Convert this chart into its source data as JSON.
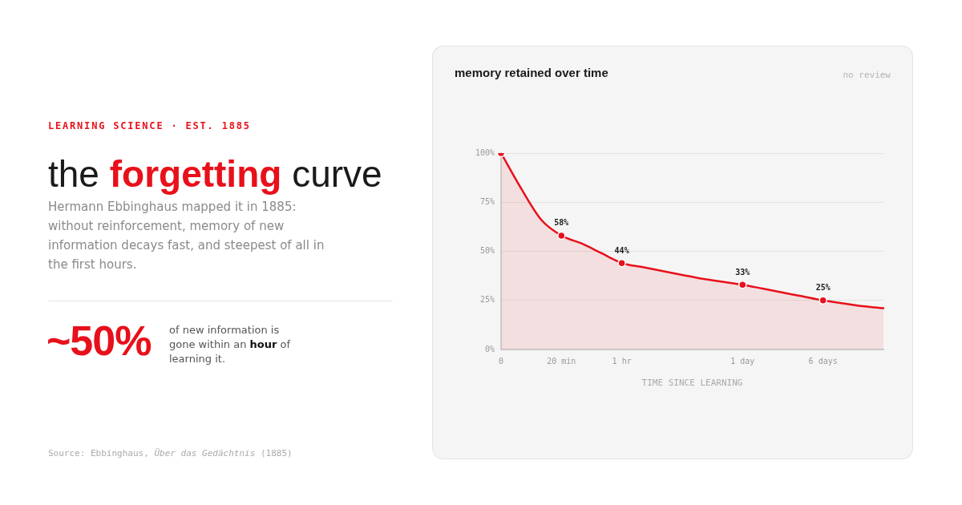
{
  "chart_data": {
    "type": "area",
    "title": "memory retained over time",
    "subtitle": "no review",
    "xlabel": "TIME SINCE LEARNING",
    "categories": [
      "0",
      null,
      null,
      "20 min",
      null,
      null,
      "1 hr",
      null,
      null,
      null,
      null,
      null,
      "1 day",
      null,
      null,
      null,
      "6 days",
      null,
      null,
      null
    ],
    "ylim": [
      0,
      100
    ],
    "yticks": [
      {
        "value": 0,
        "label": "0%"
      },
      {
        "value": 25,
        "label": "25%"
      },
      {
        "value": 50,
        "label": "50%"
      },
      {
        "value": 75,
        "label": "75%"
      },
      {
        "value": 100,
        "label": "100%"
      }
    ],
    "grid": "y",
    "series": [
      {
        "color": "#e8101a",
        "marker": "none",
        "values": [
          100,
          82,
          66,
          58,
          54,
          49,
          44,
          42,
          40,
          38,
          36,
          34.5,
          33,
          31,
          29,
          27,
          25,
          23.5,
          22,
          21
        ]
      },
      {
        "type": "scatter",
        "color": "#e8101a",
        "marker": "circle",
        "values": [
          100,
          null,
          null,
          58,
          null,
          null,
          44,
          null,
          null,
          null,
          null,
          null,
          33,
          null,
          null,
          null,
          25,
          null,
          null,
          null
        ],
        "value_labels": [
          null,
          null,
          null,
          "58%",
          null,
          null,
          "44%",
          null,
          null,
          null,
          null,
          null,
          "33%",
          null,
          null,
          null,
          "25%",
          null,
          null,
          null
        ]
      }
    ],
    "annotations": [
      "LEARNING SCIENCE · EST. 1885",
      "the forgetting curve",
      "Hermann Ebbinghaus mapped it in 1885: without reinforcement, memory of new information decays fast, and steepest of all in the first hours.",
      "~50%",
      "of new information is gone within an hour of learning it.",
      "Source: Ebbinghaus, Über das Gedächtnis (1885)"
    ]
  }
}
